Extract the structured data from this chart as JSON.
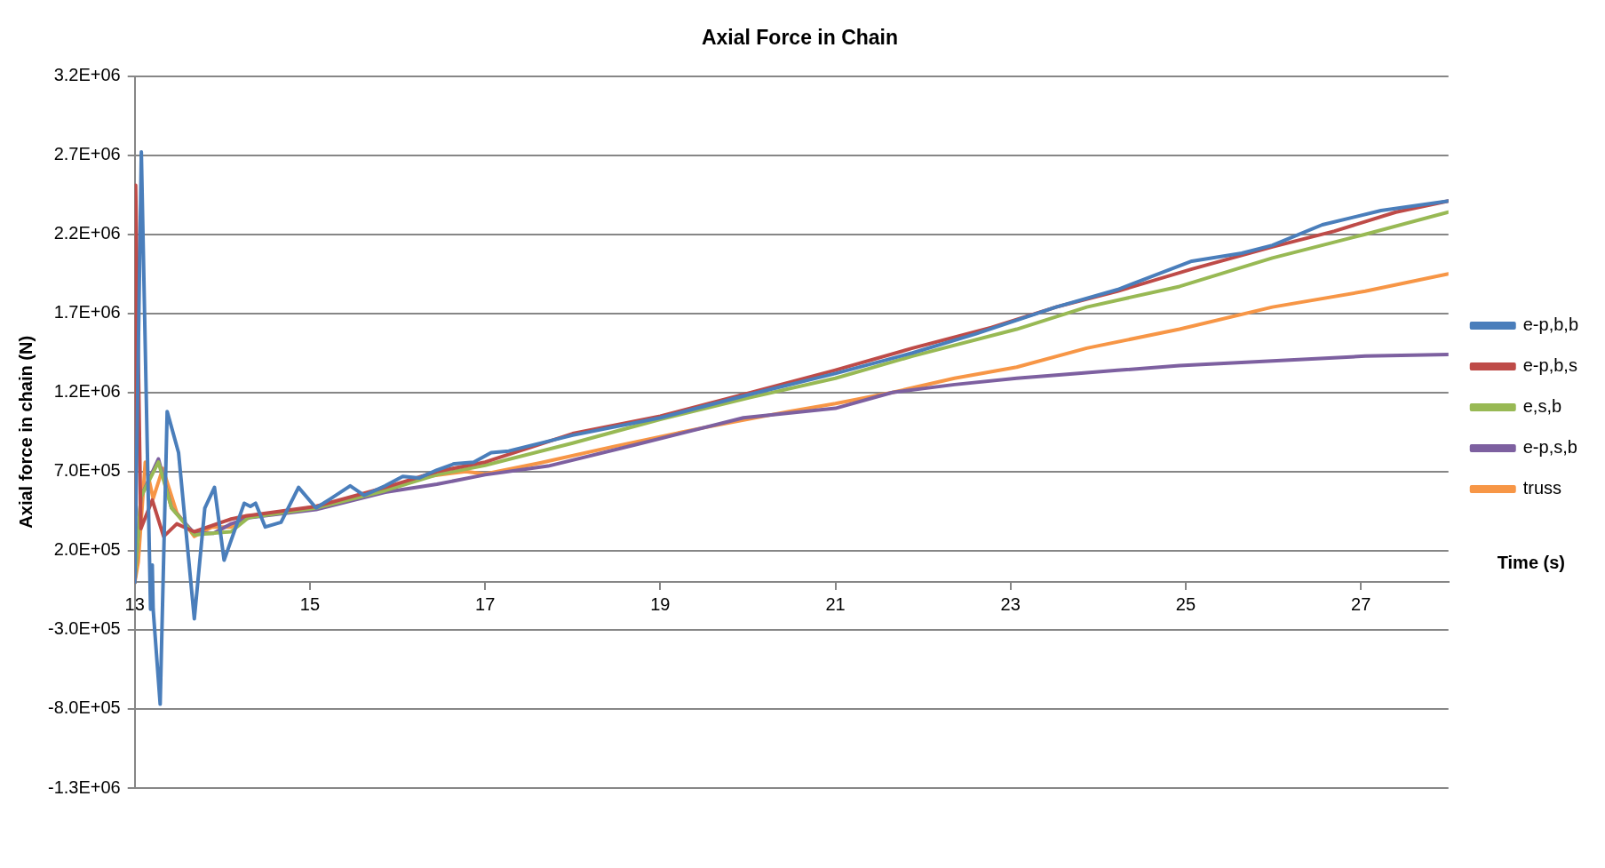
{
  "chart_data": {
    "type": "line",
    "title": "Axial Force in Chain",
    "xlabel": "Time (s)",
    "ylabel": "Axial force in chain (N)",
    "xlim": [
      13,
      28
    ],
    "xticks": [
      13,
      15,
      17,
      19,
      21,
      23,
      25,
      27
    ],
    "ylim": [
      -1300000,
      3200000
    ],
    "yticks": [
      {
        "value": -1300000,
        "label": "-1.3E+06"
      },
      {
        "value": -800000,
        "label": "-8.0E+05"
      },
      {
        "value": -300000,
        "label": "-3.0E+05"
      },
      {
        "value": 200000,
        "label": "2.0E+05"
      },
      {
        "value": 700000,
        "label": "7.0E+05"
      },
      {
        "value": 1200000,
        "label": "1.2E+06"
      },
      {
        "value": 1700000,
        "label": "1.7E+06"
      },
      {
        "value": 2200000,
        "label": "2.2E+06"
      },
      {
        "value": 2700000,
        "label": "2.7E+06"
      },
      {
        "value": 3200000,
        "label": "3.2E+06"
      }
    ],
    "grid": "y",
    "legend": "right",
    "marker": "none",
    "line_style": "solid",
    "series": [
      {
        "name": "e-p,b,b",
        "color": "#4a7ebb",
        "x": [
          13,
          13.075,
          13.18,
          13.2,
          13.21,
          13.29,
          13.37,
          13.5,
          13.68,
          13.8,
          13.91,
          14.02,
          14.25,
          14.32,
          14.38,
          14.49,
          14.67,
          14.87,
          15.07,
          15.24,
          15.46,
          15.62,
          15.86,
          16.06,
          16.25,
          16.45,
          16.65,
          16.87,
          17.07,
          17.27,
          18,
          19,
          20.04,
          21,
          21.88,
          22.6,
          23.52,
          24.22,
          25.07,
          25.64,
          25.99,
          26.56,
          27.23,
          28
        ],
        "values": [
          0,
          2720000,
          -170000,
          110000,
          -170000,
          -770000,
          1080000,
          820000,
          -230000,
          470000,
          600000,
          140000,
          500000,
          480000,
          500000,
          350000,
          380000,
          600000,
          470000,
          530000,
          610000,
          550000,
          610000,
          670000,
          660000,
          710000,
          750000,
          760000,
          820000,
          830000,
          930000,
          1040000,
          1190000,
          1320000,
          1450000,
          1570000,
          1740000,
          1850000,
          2030000,
          2080000,
          2130000,
          2260000,
          2350000,
          2410000
        ]
      },
      {
        "name": "e-p,b,s",
        "color": "#be4b48",
        "x": [
          13,
          13.01,
          13.07,
          13.2,
          13.33,
          13.48,
          13.68,
          14.1,
          14.27,
          15.07,
          15.86,
          16.45,
          17,
          18,
          19,
          20.04,
          20.99,
          21.88,
          22.78,
          23.52,
          24.22,
          25.07,
          25.99,
          26.7,
          27.4,
          28
        ],
        "values": [
          0,
          2510000,
          340000,
          520000,
          290000,
          370000,
          320000,
          400000,
          420000,
          480000,
          600000,
          700000,
          760000,
          940000,
          1050000,
          1200000,
          1340000,
          1480000,
          1610000,
          1740000,
          1840000,
          1980000,
          2120000,
          2220000,
          2340000,
          2410000
        ]
      },
      {
        "name": "e,s,b",
        "color": "#98b954",
        "x": [
          13,
          13.07,
          13.27,
          13.42,
          13.68,
          14.1,
          14.3,
          15.07,
          15.86,
          16.45,
          17,
          18,
          19,
          20.04,
          21,
          21.88,
          23.07,
          23.87,
          24.93,
          25.99,
          27.05,
          28
        ],
        "values": [
          0,
          540000,
          760000,
          470000,
          300000,
          320000,
          410000,
          470000,
          580000,
          680000,
          740000,
          880000,
          1030000,
          1170000,
          1290000,
          1430000,
          1600000,
          1740000,
          1870000,
          2050000,
          2200000,
          2340000
        ]
      },
      {
        "name": "e-p,s,b",
        "color": "#7d60a0",
        "x": [
          13,
          13.07,
          13.27,
          13.42,
          13.68,
          13.9,
          14.1,
          14.32,
          15.07,
          15.86,
          16.45,
          17,
          17.72,
          18.72,
          19.95,
          21,
          21.65,
          22.36,
          23.07,
          23.52,
          24.22,
          24.93,
          25.99,
          27.05,
          28
        ],
        "values": [
          0,
          540000,
          780000,
          470000,
          310000,
          310000,
          370000,
          410000,
          460000,
          570000,
          620000,
          680000,
          735000,
          870000,
          1040000,
          1100000,
          1200000,
          1250000,
          1290000,
          1310000,
          1340000,
          1370000,
          1400000,
          1430000,
          1440000
        ]
      },
      {
        "name": "truss",
        "color": "#f79646",
        "x": [
          13,
          13.04,
          13.12,
          13.21,
          13.32,
          13.48,
          13.68,
          13.88,
          14.1,
          14.27,
          14.67,
          15.07,
          15.46,
          15.9,
          16.34,
          16.78,
          17,
          17.63,
          18.48,
          19.47,
          20.47,
          21,
          21.65,
          22.36,
          23.07,
          23.87,
          24.93,
          25.99,
          27.05,
          28
        ],
        "values": [
          0,
          130000,
          760000,
          530000,
          720000,
          440000,
          290000,
          350000,
          350000,
          420000,
          440000,
          480000,
          530000,
          600000,
          670000,
          700000,
          685000,
          755000,
          860000,
          975000,
          1080000,
          1130000,
          1200000,
          1290000,
          1360000,
          1480000,
          1600000,
          1740000,
          1840000,
          1950000
        ]
      }
    ]
  }
}
